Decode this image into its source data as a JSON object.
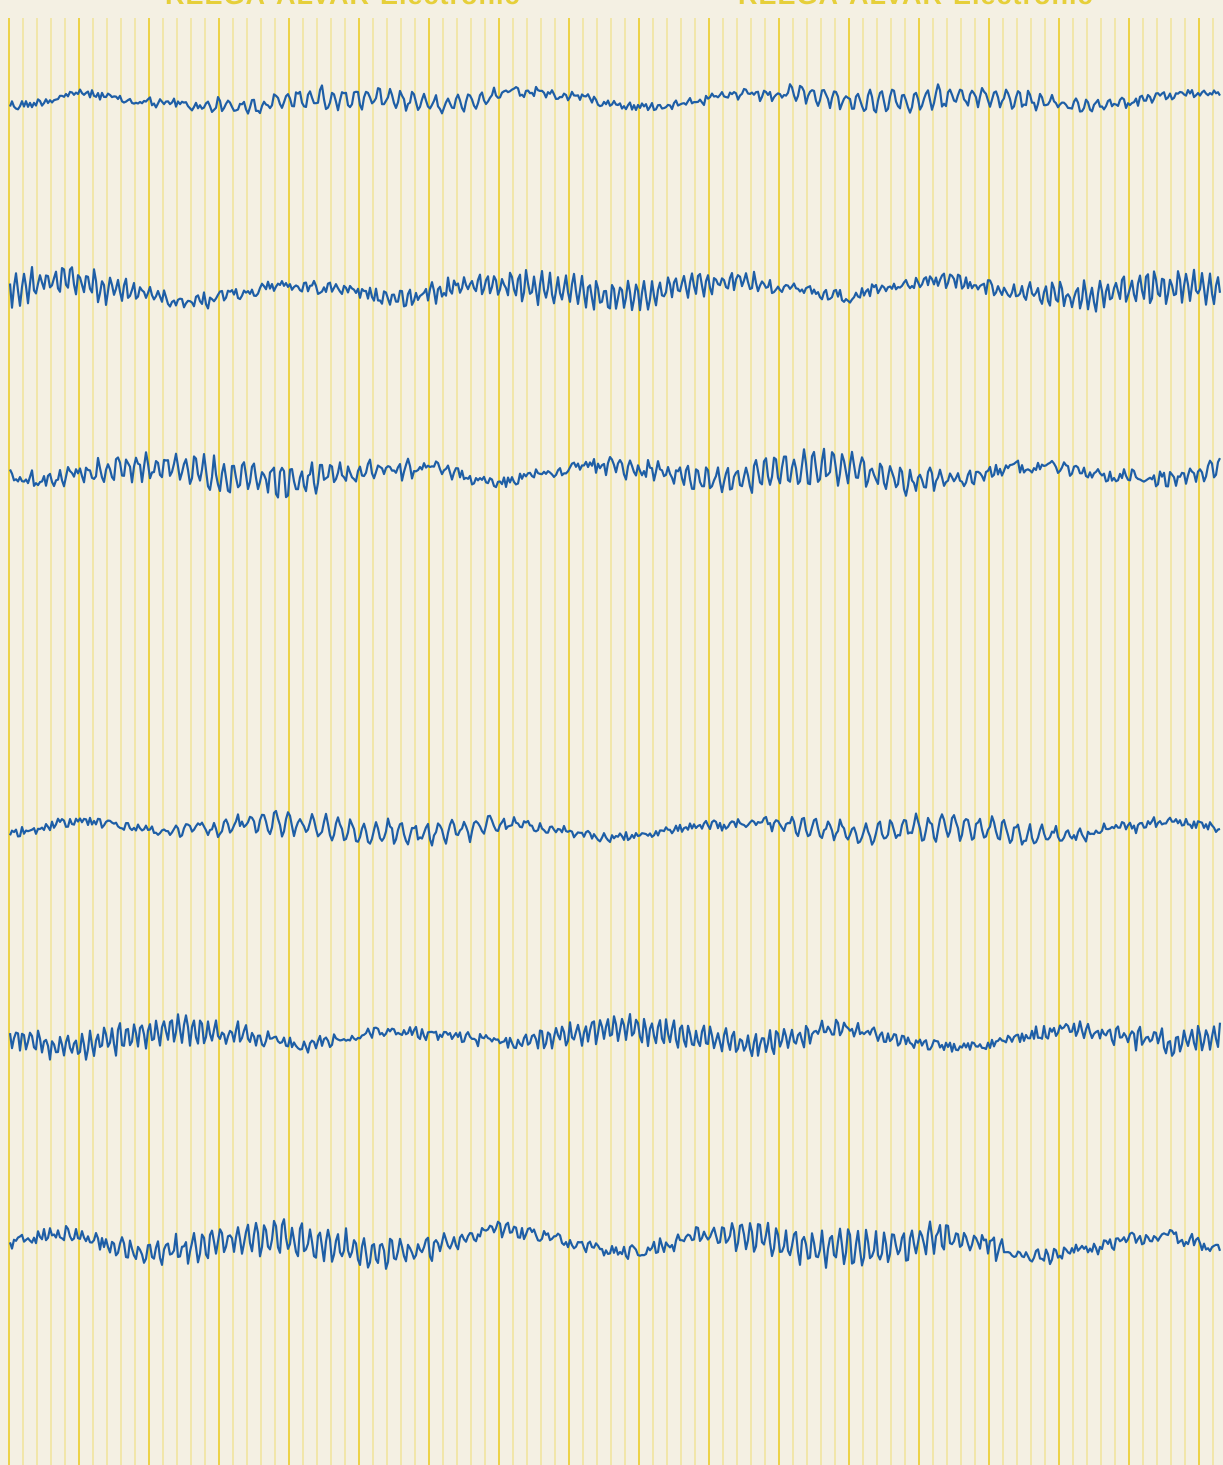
{
  "header": {
    "labels": [
      "REEGA-ALVAR-Electronic",
      "REEGA-ALVAR-Electronic"
    ]
  }
}
